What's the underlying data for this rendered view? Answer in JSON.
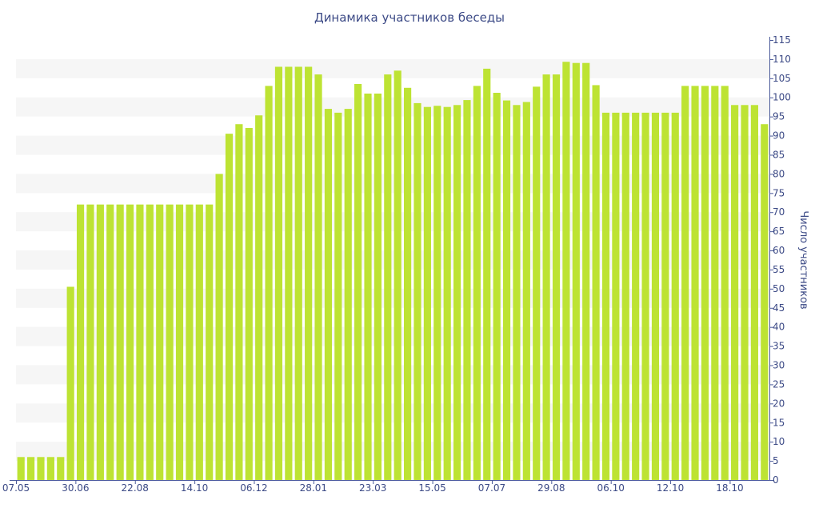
{
  "chart_data": {
    "type": "bar",
    "title": "Динамика участников беседы",
    "ylabel": "Число участников",
    "ylim": [
      0,
      115
    ],
    "y_ticks": [
      0,
      5,
      10,
      15,
      20,
      25,
      30,
      35,
      40,
      45,
      50,
      55,
      60,
      65,
      70,
      75,
      80,
      85,
      90,
      95,
      100,
      105,
      110,
      115
    ],
    "y_axis_position": "right",
    "x_tick_labels": [
      "07.05",
      "30.06",
      "22.08",
      "14.10",
      "06.12",
      "28.01",
      "23.03",
      "15.05",
      "07.07",
      "29.08",
      "06.10",
      "12.10",
      "18.10"
    ],
    "x_tick_label_at_bar": [
      0,
      6,
      12,
      18,
      24,
      30,
      36,
      42,
      48,
      54,
      60,
      66,
      72
    ],
    "values": [
      6,
      6,
      6,
      6,
      6,
      50.5,
      72,
      72,
      72,
      72,
      72,
      72,
      72,
      72,
      72,
      72,
      72,
      72,
      72,
      72,
      80,
      90.5,
      93,
      92,
      95.3,
      103,
      108,
      108,
      108,
      108,
      106,
      97,
      96,
      97,
      103.5,
      101,
      101,
      106,
      107,
      102.5,
      98.5,
      97.5,
      97.8,
      97.5,
      98,
      99.3,
      103,
      107.5,
      101.2,
      99.2,
      98,
      98.8,
      102.8,
      106,
      106,
      109.3,
      109,
      109,
      103.2,
      96,
      96,
      96,
      96,
      96,
      96,
      96,
      96,
      103,
      103,
      103,
      103,
      103,
      98,
      98,
      98,
      93
    ],
    "bar_color": "#bde333",
    "band_color": "#f6f6f6",
    "grid": "alternating horizontal bands"
  }
}
